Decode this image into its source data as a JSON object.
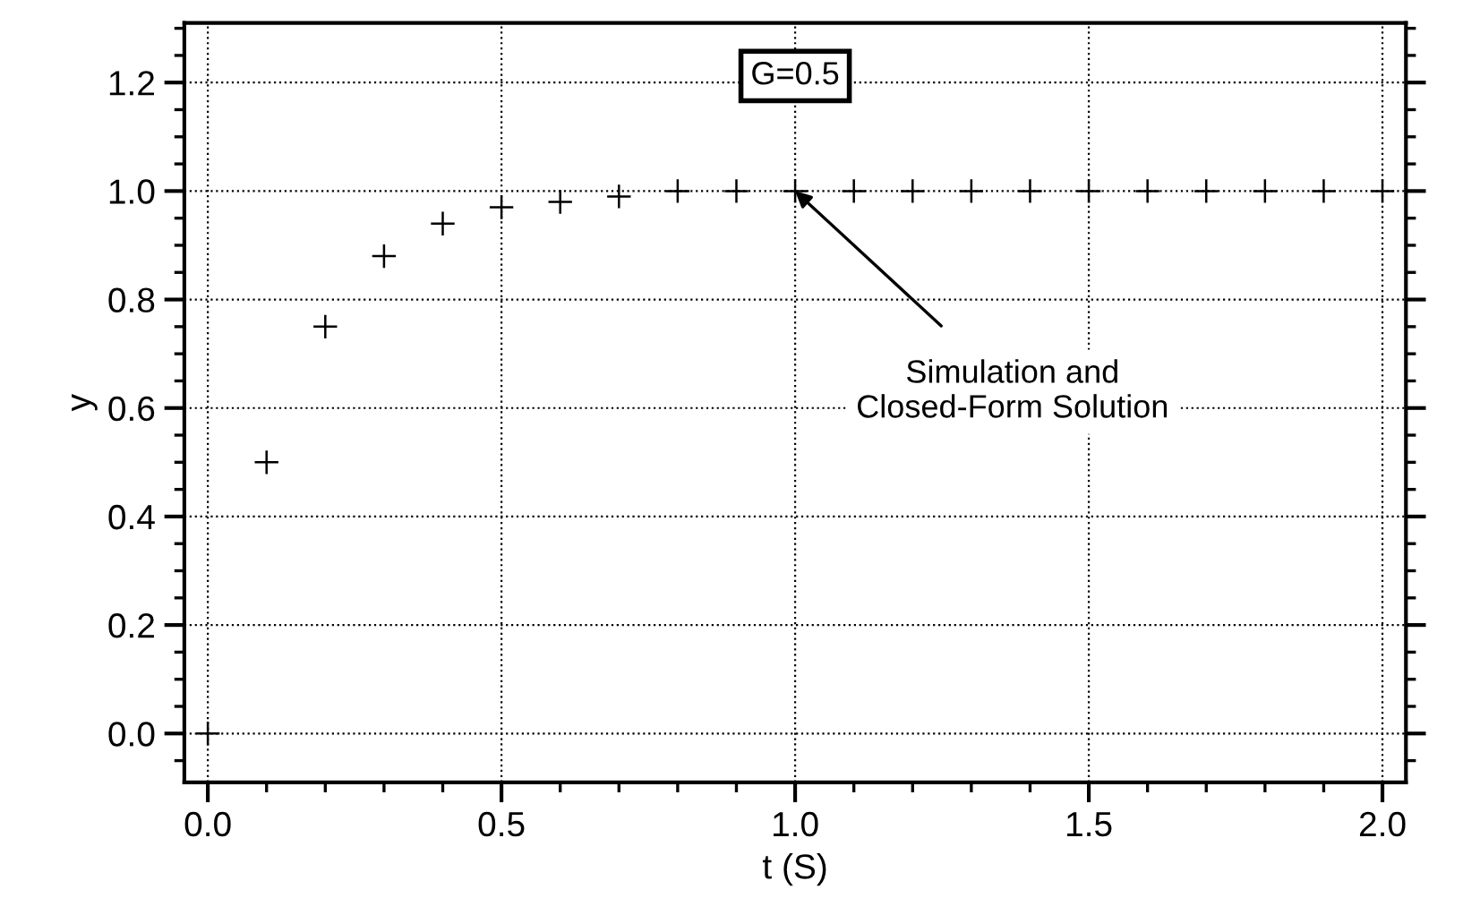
{
  "chart_data": {
    "type": "scatter",
    "xlabel": "t (S)",
    "ylabel": "y",
    "x": [
      0.0,
      0.1,
      0.2,
      0.3,
      0.4,
      0.5,
      0.6,
      0.7,
      0.8,
      0.9,
      1.0,
      1.1,
      1.2,
      1.3,
      1.4,
      1.5,
      1.6,
      1.7,
      1.8,
      1.9,
      2.0
    ],
    "series": [
      {
        "color": "#000000",
        "values": [
          0.0,
          0.5,
          0.75,
          0.88,
          0.94,
          0.97,
          0.98,
          0.99,
          1.0,
          1.0,
          1.0,
          1.0,
          1.0,
          1.0,
          1.0,
          1.0,
          1.0,
          1.0,
          1.0,
          1.0,
          1.0
        ]
      }
    ],
    "marker": "cross",
    "grid": true,
    "xlim": [
      -0.04,
      2.04
    ],
    "ylim": [
      -0.09,
      1.31
    ],
    "xticks": [
      {
        "value": 0,
        "label": "0.0"
      },
      0.5,
      {
        "value": 1,
        "label": "1.0"
      },
      1.5,
      {
        "value": 2,
        "label": "2.0"
      }
    ],
    "yticks": [
      {
        "value": 0,
        "label": "0.0"
      },
      0.2,
      0.4,
      0.6,
      0.8,
      {
        "value": 1,
        "label": "1.0"
      },
      1.2
    ],
    "annotations": [
      "G=0.5",
      {
        "text": "Simulation and\nClosed-Form Solution",
        "x": 1.0,
        "y": 1.0
      }
    ]
  }
}
